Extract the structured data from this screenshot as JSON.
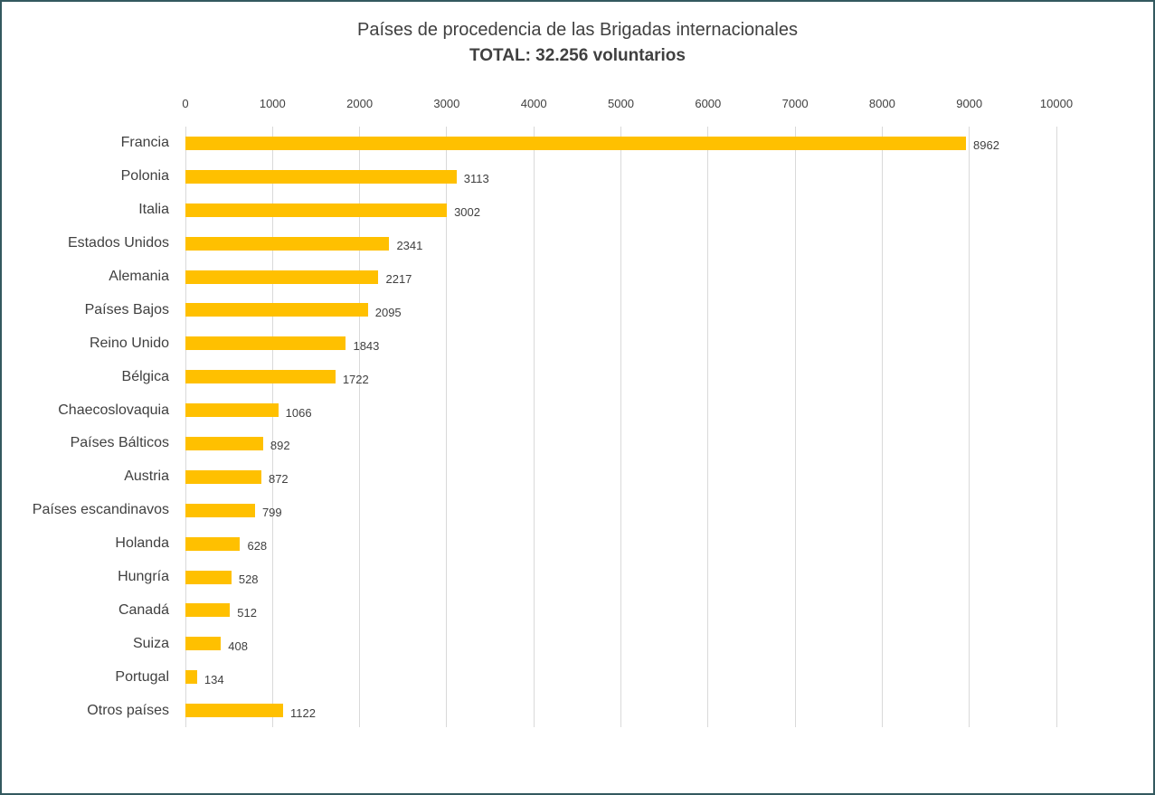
{
  "window": {
    "background": "#FFFFFF",
    "border_color": "#33595F"
  },
  "chart_data": {
    "type": "bar",
    "orientation": "horizontal",
    "title": "Países de procedencia de las Brigadas internacionales",
    "subtitle": "TOTAL: 32.256 voluntarios",
    "categories": [
      "Francia",
      "Polonia",
      "Italia",
      "Estados Unidos",
      "Alemania",
      "Países Bajos",
      "Reino Unido",
      "Bélgica",
      "Chaecoslovaquia",
      "Países Bálticos",
      "Austria",
      "Países escandinavos",
      "Holanda",
      "Hungría",
      "Canadá",
      "Suiza",
      "Portugal",
      "Otros países"
    ],
    "values": [
      8962,
      3113,
      3002,
      2341,
      2217,
      2095,
      1843,
      1722,
      1066,
      892,
      872,
      799,
      628,
      528,
      512,
      408,
      134,
      1122
    ],
    "x_ticks": [
      0,
      1000,
      2000,
      3000,
      4000,
      5000,
      6000,
      7000,
      8000,
      9000,
      10000
    ],
    "xlim": [
      0,
      10000
    ],
    "bar_color": "#FFC000",
    "grid": true,
    "gridline_color": "#D9D9D9",
    "value_labels": true,
    "legend": "none"
  }
}
